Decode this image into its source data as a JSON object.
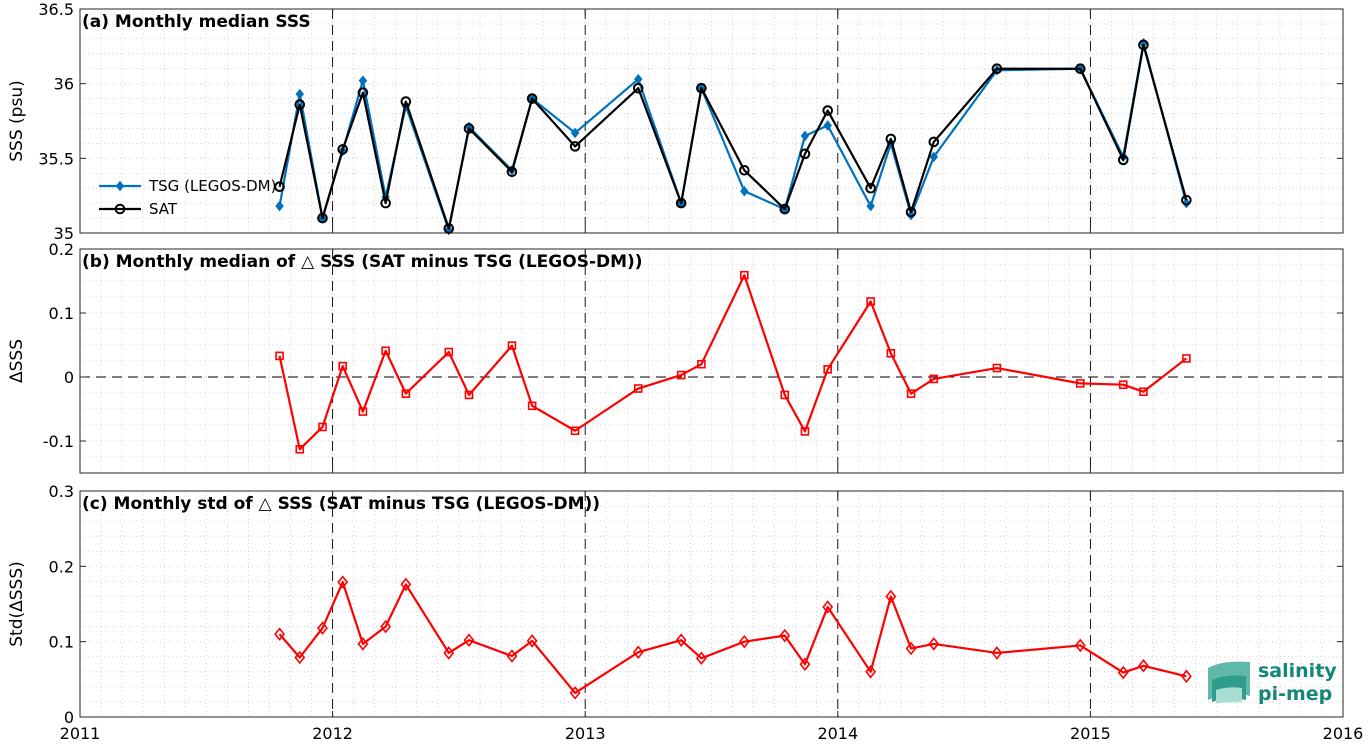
{
  "chart_data": [
    {
      "type": "line",
      "id": "a",
      "title": "(a) Monthly median SSS",
      "xlabel": "",
      "ylabel": "SSS (psu)",
      "xlim": [
        2011,
        2016
      ],
      "ylim": [
        35,
        36.5
      ],
      "yticks": [
        35,
        35.5,
        36,
        36.5
      ],
      "ytick_labels": [
        "35",
        "35.5",
        "36",
        "36.5"
      ],
      "grid": true,
      "legend_position": "left",
      "series": [
        {
          "name": "TSG (LEGOS-DM)",
          "color": "#0072bd",
          "marker": "diamond",
          "x": [
            2011.79,
            2011.87,
            2011.96,
            2012.04,
            2012.12,
            2012.21,
            2012.29,
            2012.46,
            2012.54,
            2012.71,
            2012.79,
            2012.96,
            2013.21,
            2013.38,
            2013.46,
            2013.63,
            2013.79,
            2013.87,
            2013.96,
            2014.13,
            2014.21,
            2014.29,
            2014.38,
            2014.63,
            2014.96,
            2015.13,
            2015.21,
            2015.38
          ],
          "values": [
            35.18,
            35.93,
            35.1,
            35.55,
            36.02,
            35.24,
            35.85,
            35.02,
            35.71,
            35.42,
            35.9,
            35.67,
            36.03,
            35.2,
            35.97,
            35.28,
            35.16,
            35.65,
            35.72,
            35.18,
            35.6,
            35.12,
            35.51,
            36.09,
            36.1,
            35.51,
            36.27,
            35.2
          ]
        },
        {
          "name": "SAT",
          "color": "#000000",
          "marker": "circle",
          "x": [
            2011.79,
            2011.87,
            2011.96,
            2012.04,
            2012.12,
            2012.21,
            2012.29,
            2012.46,
            2012.54,
            2012.71,
            2012.79,
            2012.96,
            2013.21,
            2013.38,
            2013.46,
            2013.63,
            2013.79,
            2013.87,
            2013.96,
            2014.13,
            2014.21,
            2014.29,
            2014.38,
            2014.63,
            2014.96,
            2015.13,
            2015.21,
            2015.38
          ],
          "values": [
            35.31,
            35.86,
            35.1,
            35.56,
            35.94,
            35.2,
            35.88,
            35.03,
            35.7,
            35.41,
            35.9,
            35.58,
            35.97,
            35.2,
            35.97,
            35.42,
            35.16,
            35.53,
            35.82,
            35.3,
            35.63,
            35.14,
            35.61,
            36.1,
            36.1,
            35.49,
            36.26,
            35.22
          ]
        }
      ]
    },
    {
      "type": "line",
      "id": "b",
      "title": "(b) Monthly median of △ SSS (SAT minus TSG (LEGOS-DM))",
      "xlabel": "",
      "ylabel": "ΔSSS",
      "xlim": [
        2011,
        2016
      ],
      "ylim": [
        -0.15,
        0.2
      ],
      "yticks": [
        -0.1,
        0,
        0.1,
        0.2
      ],
      "ytick_labels": [
        "-0.1",
        "0",
        "0.1",
        "0.2"
      ],
      "grid": true,
      "zero_line": true,
      "series": [
        {
          "color": "#ff0000",
          "marker": "square",
          "x": [
            2011.79,
            2011.87,
            2011.96,
            2012.04,
            2012.12,
            2012.21,
            2012.29,
            2012.46,
            2012.54,
            2012.71,
            2012.79,
            2012.96,
            2013.21,
            2013.38,
            2013.46,
            2013.63,
            2013.79,
            2013.87,
            2013.96,
            2014.13,
            2014.21,
            2014.29,
            2014.38,
            2014.63,
            2014.96,
            2015.13,
            2015.21,
            2015.38
          ],
          "values": [
            0.033,
            -0.113,
            -0.078,
            0.017,
            -0.054,
            0.041,
            -0.026,
            0.039,
            -0.028,
            0.049,
            -0.045,
            -0.084,
            -0.018,
            0.003,
            0.02,
            0.159,
            -0.028,
            -0.085,
            0.012,
            0.118,
            0.037,
            -0.026,
            -0.003,
            0.014,
            -0.01,
            -0.012,
            -0.023,
            0.029
          ]
        }
      ]
    },
    {
      "type": "line",
      "id": "c",
      "title": "(c) Monthly std of △ SSS (SAT minus TSG (LEGOS-DM))",
      "xlabel": "",
      "ylabel": "Std(ΔSSS)",
      "xlim": [
        2011,
        2016
      ],
      "ylim": [
        0,
        0.3
      ],
      "yticks": [
        0,
        0.1,
        0.2,
        0.3
      ],
      "ytick_labels": [
        "0",
        "0.1",
        "0.2",
        "0.3"
      ],
      "xticks": [
        2011,
        2012,
        2013,
        2014,
        2015,
        2016
      ],
      "xtick_labels": [
        "2011",
        "2012",
        "2013",
        "2014",
        "2015",
        "2016"
      ],
      "grid": true,
      "series": [
        {
          "color": "#ff0000",
          "marker": "diamond",
          "x": [
            2011.79,
            2011.87,
            2011.96,
            2012.04,
            2012.12,
            2012.21,
            2012.29,
            2012.46,
            2012.54,
            2012.71,
            2012.79,
            2012.96,
            2013.21,
            2013.38,
            2013.46,
            2013.63,
            2013.79,
            2013.87,
            2013.96,
            2014.13,
            2014.21,
            2014.29,
            2014.38,
            2014.63,
            2014.96,
            2015.13,
            2015.21,
            2015.38
          ],
          "values": [
            0.11,
            0.079,
            0.118,
            0.179,
            0.097,
            0.12,
            0.176,
            0.085,
            0.102,
            0.081,
            0.101,
            0.032,
            0.086,
            0.102,
            0.078,
            0.1,
            0.108,
            0.07,
            0.146,
            0.06,
            0.16,
            0.091,
            0.097,
            0.085,
            0.095,
            0.059,
            0.068,
            0.054
          ]
        }
      ]
    }
  ],
  "logo": {
    "line1": "salinity",
    "line2": "pi-mep"
  },
  "colors": {
    "grid": "#c8c8c8",
    "axis": "#262626",
    "logo": "#16867a"
  }
}
